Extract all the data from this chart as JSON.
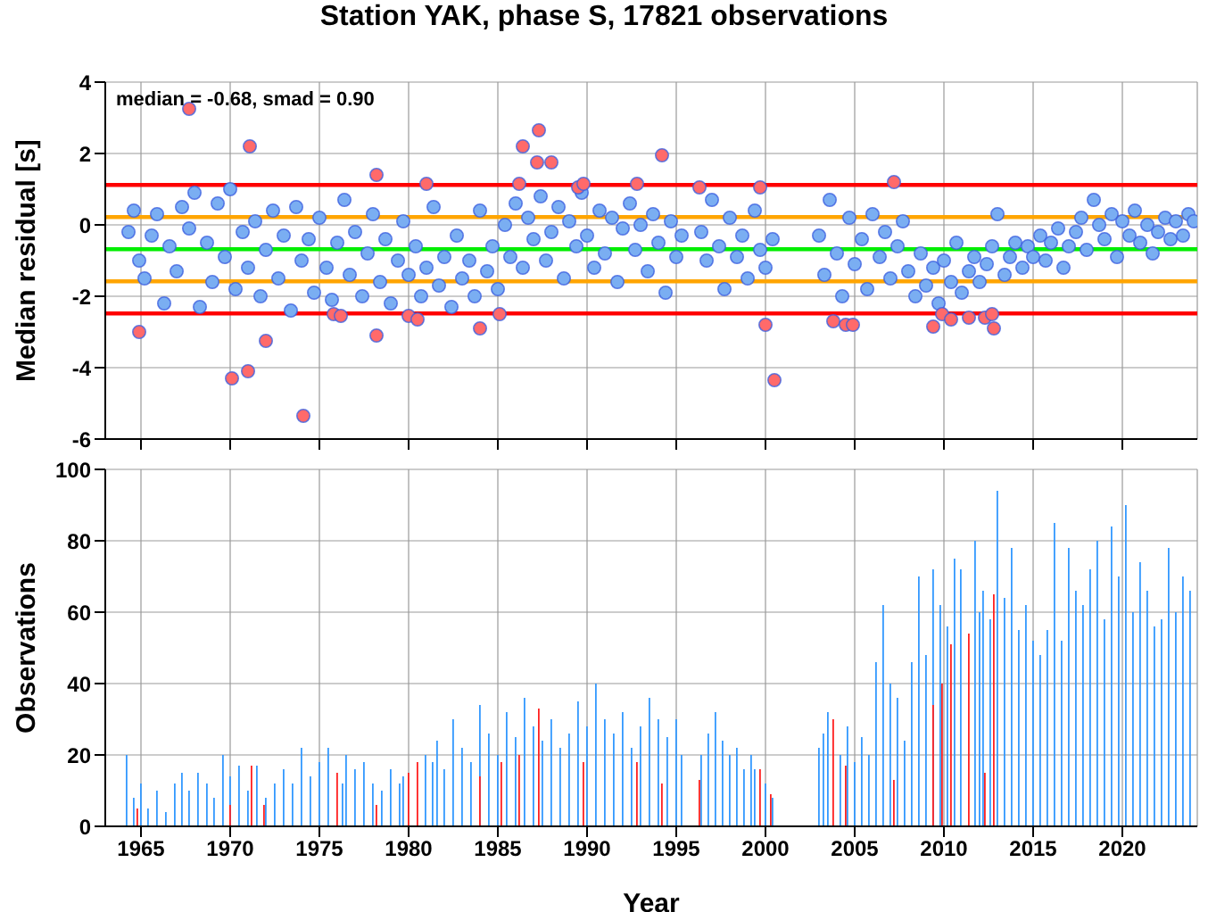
{
  "chart_data": [
    {
      "type": "scatter",
      "title": "Station YAK, phase S, 17821 observations",
      "ylabel": "Median residual [s]",
      "annotations": [
        "median = -0.68, smad = 0.90"
      ],
      "xlim": [
        1963,
        2024.2
      ],
      "xticks": [
        1965,
        1970,
        1975,
        1980,
        1985,
        1990,
        1995,
        2000,
        2005,
        2010,
        2015,
        2020
      ],
      "ylim": [
        -6,
        4
      ],
      "yticks": [
        -6,
        -4,
        -2,
        0,
        2,
        4
      ],
      "grid": true,
      "tick_labels": "y",
      "marker": "circle",
      "ref_lines": [
        {
          "axis": "y",
          "value": 1.12,
          "color": "#ff0000"
        },
        {
          "axis": "y",
          "value": 0.22,
          "color": "#ffa500"
        },
        {
          "axis": "y",
          "value": -0.68,
          "color": "#00ee00"
        },
        {
          "axis": "y",
          "value": -1.58,
          "color": "#ffa500"
        },
        {
          "axis": "y",
          "value": -2.48,
          "color": "#ff0000"
        }
      ],
      "series": [
        {
          "color": "#7aaef2",
          "x": [
            1964.3,
            1964.6,
            1964.9,
            1965.2,
            1965.6,
            1965.9,
            1966.3,
            1966.6,
            1967.0,
            1967.3,
            1967.7,
            1968.0,
            1968.3,
            1968.7,
            1969.0,
            1969.3,
            1969.7,
            1970.0,
            1970.3,
            1970.7,
            1971.0,
            1971.4,
            1971.7,
            1972.0,
            1972.4,
            1972.7,
            1973.0,
            1973.4,
            1973.7,
            1974.0,
            1974.4,
            1974.7,
            1975.0,
            1975.4,
            1975.7,
            1976.0,
            1976.4,
            1976.7,
            1977.0,
            1977.4,
            1977.7,
            1978.0,
            1978.4,
            1978.7,
            1979.0,
            1979.4,
            1979.7,
            1980.0,
            1980.4,
            1980.7,
            1981.0,
            1981.4,
            1981.7,
            1982.0,
            1982.4,
            1982.7,
            1983.0,
            1983.4,
            1983.7,
            1984.0,
            1984.4,
            1984.7,
            1985.0,
            1985.4,
            1985.7,
            1986.0,
            1986.4,
            1986.7,
            1987.0,
            1987.4,
            1987.7,
            1988.0,
            1988.4,
            1988.7,
            1989.0,
            1989.4,
            1989.7,
            1990.0,
            1990.4,
            1990.7,
            1991.0,
            1991.4,
            1991.7,
            1992.0,
            1992.4,
            1992.7,
            1993.0,
            1993.4,
            1993.7,
            1994.0,
            1994.4,
            1994.7,
            1995.0,
            1995.3,
            1996.4,
            1996.7,
            1997.0,
            1997.4,
            1997.7,
            1998.0,
            1998.4,
            1998.7,
            1999.0,
            1999.4,
            1999.7,
            2000.0,
            2000.4,
            2003.0,
            2003.3,
            2003.6,
            2004.0,
            2004.3,
            2004.7,
            2005.0,
            2005.4,
            2005.7,
            2006.0,
            2006.4,
            2006.7,
            2007.0,
            2007.4,
            2007.7,
            2008.0,
            2008.4,
            2008.7,
            2009.0,
            2009.4,
            2009.7,
            2010.0,
            2010.4,
            2010.7,
            2011.0,
            2011.4,
            2011.7,
            2012.0,
            2012.4,
            2012.7,
            2013.0,
            2013.4,
            2013.7,
            2014.0,
            2014.4,
            2014.7,
            2015.0,
            2015.4,
            2015.7,
            2016.0,
            2016.4,
            2016.7,
            2017.0,
            2017.4,
            2017.7,
            2018.0,
            2018.4,
            2018.7,
            2019.0,
            2019.4,
            2019.7,
            2020.0,
            2020.4,
            2020.7,
            2021.0,
            2021.4,
            2021.7,
            2022.0,
            2022.4,
            2022.7,
            2023.0,
            2023.4,
            2023.7,
            2024.0
          ],
          "values": [
            -0.2,
            0.4,
            -1.0,
            -1.5,
            -0.3,
            0.3,
            -2.2,
            -0.6,
            -1.3,
            0.5,
            -0.1,
            0.9,
            -2.3,
            -0.5,
            -1.6,
            0.6,
            -0.9,
            1.0,
            -1.8,
            -0.2,
            -1.2,
            0.1,
            -2.0,
            -0.7,
            0.4,
            -1.5,
            -0.3,
            -2.4,
            0.5,
            -1.0,
            -0.4,
            -1.9,
            0.2,
            -1.2,
            -2.1,
            -0.5,
            0.7,
            -1.4,
            -0.2,
            -2.0,
            -0.8,
            0.3,
            -1.6,
            -0.4,
            -2.2,
            -1.0,
            0.1,
            -1.4,
            -0.6,
            -2.0,
            -1.2,
            0.5,
            -1.7,
            -0.9,
            -2.3,
            -0.3,
            -1.5,
            -1.0,
            -2.0,
            0.4,
            -1.3,
            -0.6,
            -1.8,
            0.0,
            -0.9,
            0.6,
            -1.2,
            0.2,
            -0.4,
            0.8,
            -1.0,
            -0.2,
            0.5,
            -1.5,
            0.1,
            -0.6,
            0.9,
            -0.3,
            -1.2,
            0.4,
            -0.8,
            0.2,
            -1.6,
            -0.1,
            0.6,
            -0.7,
            0.0,
            -1.3,
            0.3,
            -0.5,
            -1.9,
            0.1,
            -0.9,
            -0.3,
            -0.2,
            -1.0,
            0.7,
            -0.6,
            -1.8,
            0.2,
            -0.9,
            -0.3,
            -1.5,
            0.4,
            -0.7,
            -1.2,
            -0.4,
            -0.3,
            -1.4,
            0.7,
            -0.8,
            -2.0,
            0.2,
            -1.1,
            -0.4,
            -1.8,
            0.3,
            -0.9,
            -0.2,
            -1.5,
            -0.6,
            0.1,
            -1.3,
            -2.0,
            -0.8,
            -1.7,
            -1.2,
            -2.2,
            -1.0,
            -1.6,
            -0.5,
            -1.9,
            -1.3,
            -0.9,
            -1.6,
            -1.1,
            -0.6,
            0.3,
            -1.4,
            -0.9,
            -0.5,
            -1.2,
            -0.6,
            -0.9,
            -0.3,
            -1.0,
            -0.5,
            -0.1,
            -1.2,
            -0.6,
            -0.2,
            0.2,
            -0.7,
            0.7,
            0.0,
            -0.4,
            0.3,
            -0.9,
            0.1,
            -0.3,
            0.4,
            -0.5,
            0.0,
            -0.8,
            -0.2,
            0.2,
            -0.4,
            0.1,
            -0.3,
            0.3,
            0.1
          ]
        },
        {
          "color": "#ff6a6a",
          "x": [
            1964.9,
            1967.7,
            1970.1,
            1971.0,
            1971.1,
            1972.0,
            1974.1,
            1975.8,
            1976.2,
            1978.2,
            1978.2,
            1980.0,
            1980.5,
            1981.0,
            1984.0,
            1985.1,
            1986.2,
            1986.4,
            1987.2,
            1987.3,
            1988.0,
            1989.5,
            1989.8,
            1992.8,
            1994.2,
            1996.3,
            1999.7,
            2000.0,
            2000.5,
            2003.8,
            2004.5,
            2004.9,
            2007.2,
            2009.4,
            2009.9,
            2010.4,
            2011.4,
            2012.3,
            2012.7,
            2012.8
          ],
          "values": [
            -3.0,
            3.25,
            -4.3,
            -4.1,
            2.2,
            -3.25,
            -5.35,
            -2.5,
            -2.55,
            1.4,
            -3.1,
            -2.55,
            -2.65,
            1.15,
            -2.9,
            -2.5,
            1.15,
            2.2,
            1.75,
            2.65,
            1.75,
            1.05,
            1.15,
            1.15,
            1.95,
            1.05,
            1.05,
            -2.8,
            -4.35,
            -2.7,
            -2.8,
            -2.8,
            1.2,
            -2.85,
            -2.5,
            -2.65,
            -2.6,
            -2.6,
            -2.5,
            -2.9
          ]
        }
      ]
    },
    {
      "type": "bar",
      "xlabel": "Year",
      "ylabel": "Observations",
      "xlim": [
        1963,
        2024.2
      ],
      "xticks": [
        1965,
        1970,
        1975,
        1980,
        1985,
        1990,
        1995,
        2000,
        2005,
        2010,
        2015,
        2020
      ],
      "ylim": [
        0,
        100
      ],
      "yticks": [
        0,
        20,
        40,
        60,
        80,
        100
      ],
      "grid": true,
      "series": [
        {
          "color": "#3399ff",
          "x": [
            1964.2,
            1964.6,
            1965.0,
            1965.4,
            1965.9,
            1966.4,
            1966.9,
            1967.3,
            1967.7,
            1968.2,
            1968.7,
            1969.1,
            1969.6,
            1970.0,
            1970.5,
            1971.0,
            1971.5,
            1972.0,
            1972.5,
            1973.0,
            1973.5,
            1974.0,
            1974.5,
            1975.0,
            1975.5,
            1976.3,
            1976.5,
            1977.0,
            1977.5,
            1978.0,
            1978.5,
            1979.0,
            1979.5,
            1979.7,
            1980.95,
            1981.35,
            1981.6,
            1982.0,
            1982.5,
            1983.0,
            1983.5,
            1984.0,
            1984.5,
            1985.0,
            1985.5,
            1986.0,
            1986.5,
            1987.0,
            1987.5,
            1988.0,
            1988.5,
            1989.0,
            1989.5,
            1990.0,
            1990.5,
            1991.0,
            1991.5,
            1992.0,
            1992.5,
            1993.0,
            1993.5,
            1994.0,
            1994.5,
            1995.0,
            1995.3,
            1996.4,
            1996.8,
            1997.2,
            1997.6,
            1998.0,
            1998.4,
            1998.8,
            1999.2,
            1999.4,
            2000.0,
            2000.4,
            2003.0,
            2003.25,
            2003.5,
            2004.2,
            2004.6,
            2005.0,
            2005.4,
            2005.8,
            2006.2,
            2006.6,
            2007.0,
            2007.4,
            2007.8,
            2008.2,
            2008.6,
            2009.0,
            2009.4,
            2009.8,
            2010.2,
            2010.6,
            2010.95,
            2011.75,
            2012.0,
            2012.2,
            2012.6,
            2013.0,
            2013.4,
            2013.8,
            2014.2,
            2014.6,
            2015.0,
            2015.4,
            2015.8,
            2016.2,
            2016.6,
            2017.0,
            2017.4,
            2017.8,
            2018.2,
            2018.6,
            2019.0,
            2019.4,
            2019.8,
            2020.2,
            2020.6,
            2021.0,
            2021.4,
            2021.8,
            2022.2,
            2022.6,
            2023.0,
            2023.4,
            2023.8
          ],
          "values": [
            20,
            8,
            12,
            5,
            10,
            4,
            12,
            15,
            10,
            15,
            12,
            8,
            20,
            14,
            17,
            10,
            17,
            8,
            12,
            16,
            12,
            22,
            14,
            18,
            22,
            12,
            20,
            16,
            18,
            12,
            10,
            16,
            12,
            14,
            20,
            18,
            24,
            16,
            30,
            22,
            18,
            34,
            26,
            20,
            32,
            25,
            36,
            28,
            24,
            30,
            22,
            26,
            35,
            28,
            40,
            30,
            26,
            32,
            22,
            28,
            36,
            30,
            25,
            30,
            20,
            20,
            26,
            32,
            24,
            20,
            22,
            16,
            20,
            16,
            12,
            8,
            22,
            26,
            32,
            20,
            28,
            18,
            25,
            20,
            46,
            62,
            40,
            36,
            24,
            46,
            70,
            48,
            72,
            62,
            56,
            75,
            72,
            80,
            60,
            66,
            58,
            94,
            64,
            78,
            55,
            62,
            52,
            48,
            55,
            85,
            52,
            78,
            66,
            62,
            72,
            80,
            58,
            84,
            70,
            90,
            60,
            74,
            66,
            56,
            58,
            78,
            60,
            70,
            66
          ]
        },
        {
          "color": "#ff2020",
          "x": [
            1964.8,
            1970.0,
            1971.2,
            1971.9,
            1976.0,
            1978.2,
            1980.0,
            1980.5,
            1984.0,
            1985.2,
            1986.2,
            1987.3,
            1989.8,
            1992.8,
            1994.2,
            1996.3,
            1999.7,
            2000.3,
            2003.8,
            2004.5,
            2007.2,
            2009.4,
            2009.9,
            2010.4,
            2011.4,
            2012.3,
            2012.8
          ],
          "values": [
            5,
            6,
            17,
            6,
            15,
            6,
            15,
            18,
            14,
            18,
            20,
            33,
            18,
            18,
            12,
            13,
            16,
            9,
            30,
            17,
            13,
            34,
            40,
            51,
            54,
            15,
            65
          ]
        }
      ]
    }
  ]
}
